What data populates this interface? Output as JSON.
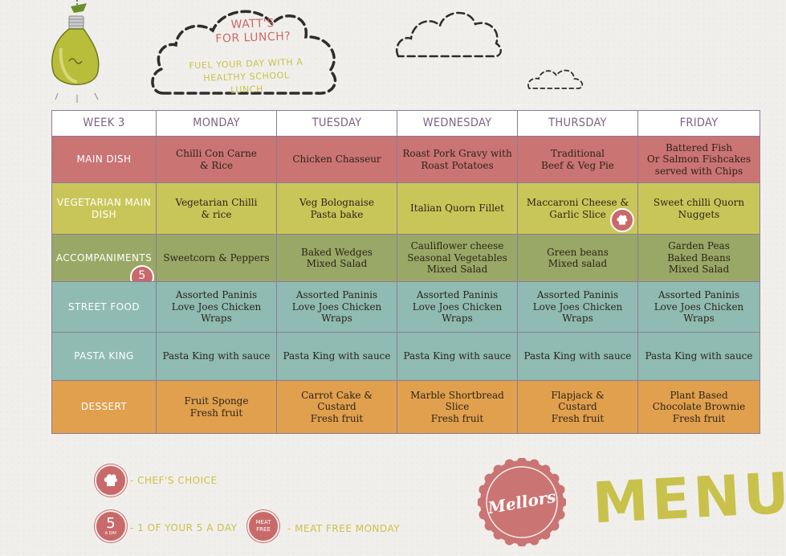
{
  "header": {
    "title_line1": "WATT'S",
    "title_line2": "FOR LUNCH?",
    "subtitle_line1": "FUEL YOUR DAY WITH A",
    "subtitle_line2": "HEALTHY SCHOOL LUNCH"
  },
  "table": {
    "corner": "WEEK 3",
    "days": [
      "MONDAY",
      "TUESDAY",
      "WEDNESDAY",
      "THURSDAY",
      "FRIDAY"
    ],
    "rows": [
      {
        "label": "MAIN DISH",
        "color": "#cb7474",
        "cells": [
          "Chilli Con Carne\n& Rice",
          "Chicken Chasseur",
          "Roast Pork  Gravy with\nRoast Potatoes",
          "Traditional\nBeef & Veg Pie",
          "Battered Fish\nOr Salmon Fishcakes\nserved with Chips"
        ]
      },
      {
        "label": "VEGETARIAN MAIN DISH",
        "color": "#c9c659",
        "cells": [
          "Vegetarian Chilli\n& rice",
          "Veg Bolognaise\nPasta bake",
          "Italian Quorn Fillet",
          "Maccaroni Cheese &\nGarlic Slice",
          "Sweet chilli Quorn\nNuggets"
        ]
      },
      {
        "label": "ACCOMPANIMENTS",
        "color": "#99a866",
        "cells": [
          "Sweetcorn & Peppers",
          "Baked Wedges\nMixed Salad",
          "Cauliflower cheese\nSeasonal Vegetables\nMixed Salad",
          "Green beans\nMixed salad",
          "Garden Peas\nBaked Beans\nMixed Salad"
        ]
      },
      {
        "label": "STREET FOOD",
        "color": "#8fbbb2",
        "cells": [
          "Assorted Paninis\nLove Joes Chicken\nWraps",
          "Assorted Paninis\nLove Joes Chicken\nWraps",
          "Assorted Paninis\nLove Joes Chicken\nWraps",
          "Assorted Paninis\nLove Joes Chicken\nWraps",
          "Assorted Paninis\nLove Joes Chicken\nWraps"
        ]
      },
      {
        "label": "PASTA KING",
        "color": "#8fbbb2",
        "cells": [
          "Pasta King with sauce",
          "Pasta King with sauce",
          "Pasta King with sauce",
          "Pasta King with sauce",
          "Pasta King with sauce"
        ]
      },
      {
        "label": "DESSERT",
        "color": "#e1a04e",
        "cells": [
          "Fruit Sponge\nFresh fruit",
          "Carrot Cake &\nCustard\nFresh fruit",
          "Marble Shortbread\nSlice\nFresh fruit",
          "Flapjack &\nCustard\nFresh fruit",
          "Plant Based\nChocolate Brownie\nFresh fruit"
        ]
      }
    ],
    "five_badge_number": "5",
    "five_badge_small": "A DAY"
  },
  "legend": {
    "chef_label": "- CHEF'S CHOICE",
    "five_number": "5",
    "five_small": "A DAY",
    "five_label": "- 1 OF YOUR 5 A DAY",
    "meat_line1": "MEAT",
    "meat_line2": "FREE",
    "meat_label": "- MEAT FREE MONDAY"
  },
  "branding": {
    "stamp_text": "Mellors",
    "menu_word": "MENU"
  },
  "colors": {
    "accent_red": "#c96a6a",
    "accent_yellow": "#c8c24c",
    "header_purple": "#7d6284"
  }
}
